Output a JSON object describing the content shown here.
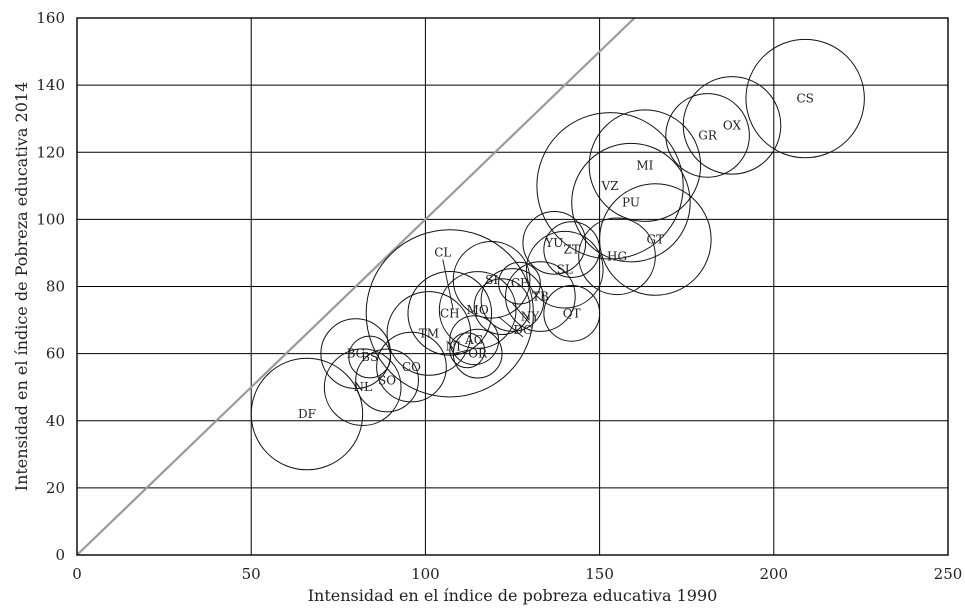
{
  "chart_data": {
    "type": "scatter",
    "title": "",
    "xlabel": "Intensidad en el índice de pobreza educativa 1990",
    "ylabel": "Intensidad en el índice de Pobreza educativa 2014",
    "xlim": [
      0,
      250
    ],
    "ylim": [
      0,
      160
    ],
    "xticks": [
      "0",
      "50",
      "100",
      "150",
      "200",
      "250"
    ],
    "yticks": [
      "0",
      "20",
      "40",
      "60",
      "80",
      "100",
      "120",
      "140",
      "160"
    ],
    "grid": true,
    "reference_line": "y = x",
    "points": [
      {
        "label": "CS",
        "x": 209,
        "y": 136,
        "size": 17
      },
      {
        "label": "OX",
        "x": 188,
        "y": 128,
        "size": 14
      },
      {
        "label": "GR",
        "x": 181,
        "y": 125,
        "size": 12
      },
      {
        "label": "MI",
        "x": 163,
        "y": 116,
        "size": 16
      },
      {
        "label": "VZ",
        "x": 153,
        "y": 110,
        "size": 21
      },
      {
        "label": "PU",
        "x": 159,
        "y": 105,
        "size": 17
      },
      {
        "label": "GT",
        "x": 166,
        "y": 94,
        "size": 16
      },
      {
        "label": "HG",
        "x": 155,
        "y": 89,
        "size": 11
      },
      {
        "label": "YU",
        "x": 137,
        "y": 93,
        "size": 9
      },
      {
        "label": "ZT",
        "x": 142,
        "y": 91,
        "size": 8
      },
      {
        "label": "SL",
        "x": 140,
        "y": 85,
        "size": 11
      },
      {
        "label": "TB",
        "x": 133,
        "y": 77,
        "size": 10
      },
      {
        "label": "QT",
        "x": 142,
        "y": 72,
        "size": 8
      },
      {
        "label": "SI",
        "x": 119,
        "y": 82,
        "size": 11
      },
      {
        "label": "CP",
        "x": 127,
        "y": 81,
        "size": 6
      },
      {
        "label": "NY",
        "x": 125,
        "y": 76,
        "size": 9
      },
      {
        "label": "DG",
        "x": 122,
        "y": 74,
        "size": 8
      },
      {
        "label": "MO",
        "x": 115,
        "y": 73,
        "size": 11
      },
      {
        "label": "CL",
        "x": 107,
        "y": 72,
        "size": 24
      },
      {
        "label": "CH",
        "x": 107,
        "y": 72,
        "size": 12
      },
      {
        "label": "TM",
        "x": 101,
        "y": 66,
        "size": 12
      },
      {
        "label": "AG",
        "x": 114,
        "y": 64,
        "size": 7
      },
      {
        "label": "NI",
        "x": 112,
        "y": 61,
        "size": 5
      },
      {
        "label": "OR",
        "x": 115,
        "y": 60,
        "size": 7
      },
      {
        "label": "BC",
        "x": 80,
        "y": 60,
        "size": 10
      },
      {
        "label": "BS",
        "x": 84,
        "y": 59,
        "size": 6
      },
      {
        "label": "CO",
        "x": 96,
        "y": 56,
        "size": 10
      },
      {
        "label": "SO",
        "x": 89,
        "y": 52,
        "size": 9
      },
      {
        "label": "NL",
        "x": 82,
        "y": 50,
        "size": 11
      },
      {
        "label": "DF",
        "x": 66,
        "y": 42,
        "size": 16
      }
    ],
    "callouts": [
      {
        "label": "CL",
        "x": 105,
        "y": 88,
        "to_x": 108,
        "to_y": 73
      },
      {
        "label": "NY",
        "x": 130,
        "y": 69,
        "to_x": 125,
        "to_y": 75
      },
      {
        "label": "DG",
        "x": 128,
        "y": 65,
        "to_x": 121,
        "to_y": 71
      },
      {
        "label": "NI",
        "x": 108,
        "y": 60,
        "to_x": 112,
        "to_y": 61
      }
    ]
  }
}
